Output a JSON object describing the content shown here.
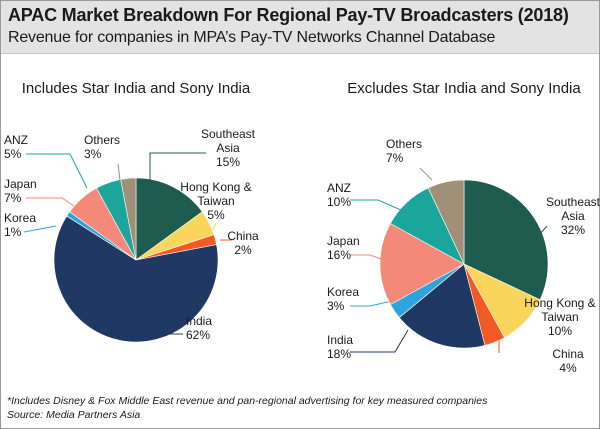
{
  "header": {
    "title": "APAC Market Breakdown For Regional Pay-TV Broadcasters (2018)",
    "subtitle": "Revenue for companies in MPA’s Pay-TV Networks Channel Database"
  },
  "footer": {
    "note": "*Includes Disney & Fox Middle East revenue and pan-regional advertising for key measured companies",
    "source": "Source: Media Partners Asia"
  },
  "colors": {
    "Southeast Asia": "#1e5c4f",
    "Hong Kong & Taiwan": "#f9d65b",
    "China": "#f15a24",
    "India": "#1f3864",
    "Korea": "#2ea3dc",
    "Japan": "#f4897a",
    "ANZ": "#1aa69b",
    "Others": "#a09078"
  },
  "chart_data": [
    {
      "type": "pie",
      "title": "Includes Star India and Sony India",
      "slices": [
        {
          "label_lines": [
            "Southeast",
            "Asia"
          ],
          "value": 15,
          "value_label": "15%"
        },
        {
          "label_lines": [
            "Hong Kong &",
            "Taiwan"
          ],
          "value": 5,
          "value_label": "5%"
        },
        {
          "label_lines": [
            "China"
          ],
          "value": 2,
          "value_label": "2%"
        },
        {
          "label_lines": [
            "India"
          ],
          "value": 62,
          "value_label": "62%"
        },
        {
          "label_lines": [
            "Korea"
          ],
          "value": 1,
          "value_label": "1%"
        },
        {
          "label_lines": [
            "Japan"
          ],
          "value": 7,
          "value_label": "7%"
        },
        {
          "label_lines": [
            "ANZ"
          ],
          "value": 5,
          "value_label": "5%"
        },
        {
          "label_lines": [
            "Others"
          ],
          "value": 3,
          "value_label": "3%"
        }
      ]
    },
    {
      "type": "pie",
      "title": "Excludes Star India and Sony India",
      "slices": [
        {
          "label_lines": [
            "Southeast",
            "Asia"
          ],
          "value": 32,
          "value_label": "32%"
        },
        {
          "label_lines": [
            "Hong Kong &",
            "Taiwan"
          ],
          "value": 10,
          "value_label": "10%"
        },
        {
          "label_lines": [
            "China"
          ],
          "value": 4,
          "value_label": "4%"
        },
        {
          "label_lines": [
            "India"
          ],
          "value": 18,
          "value_label": "18%"
        },
        {
          "label_lines": [
            "Korea"
          ],
          "value": 3,
          "value_label": "3%"
        },
        {
          "label_lines": [
            "Japan"
          ],
          "value": 16,
          "value_label": "16%"
        },
        {
          "label_lines": [
            "ANZ"
          ],
          "value": 10,
          "value_label": "10%"
        },
        {
          "label_lines": [
            "Others"
          ],
          "value": 7,
          "value_label": "7%"
        }
      ]
    }
  ]
}
